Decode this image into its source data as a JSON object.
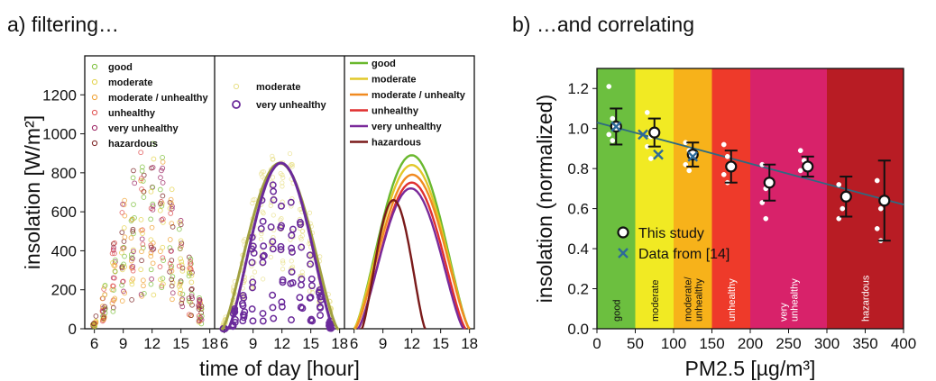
{
  "panels": {
    "a_title": "a) filtering…",
    "b_title": "b) …and correlating"
  },
  "chart_data": [
    {
      "type": "scatter",
      "panel": "a",
      "ylabel": "insolation [W/m²]",
      "xlabel": "time of day [hour]",
      "ylim": [
        0,
        1400
      ],
      "xlim": [
        5,
        18.5
      ],
      "yticks": [
        0,
        200,
        400,
        600,
        800,
        1000,
        1200
      ],
      "xticks": [
        6,
        9,
        12,
        15,
        18
      ],
      "subplots": [
        {
          "kind": "scatter",
          "legend": [
            "good",
            "moderate",
            "moderate / unhealthy",
            "unhealthy",
            "very unhealthy",
            "hazardous"
          ],
          "colors": [
            "#7cbf3a",
            "#e3d24a",
            "#f0a030",
            "#e05050",
            "#9a2060",
            "#7a2020"
          ]
        },
        {
          "kind": "scatter+fit",
          "legend": [
            "moderate",
            "very unhealthy"
          ],
          "colors": [
            "#e8e08a",
            "#6a2a9a"
          ],
          "fits": [
            {
              "series": "moderate",
              "peak": 850,
              "start": 5.8,
              "end": 17.8,
              "color": "#a0a040"
            },
            {
              "series": "very unhealthy",
              "peak": 850,
              "start": 6.4,
              "end": 17.4,
              "color": "#6a2a9a"
            }
          ]
        },
        {
          "kind": "line",
          "legend": [
            "good",
            "moderate",
            "moderate / unhealty",
            "unhealthy",
            "very unhealthy",
            "hazardous"
          ],
          "series": [
            {
              "name": "good",
              "color": "#6ab82e",
              "peak": 890,
              "start": 6.0,
              "end": 18.0
            },
            {
              "name": "moderate",
              "color": "#e2c82a",
              "peak": 840,
              "start": 6.0,
              "end": 18.0
            },
            {
              "name": "moderate / unhealty",
              "color": "#f08a20",
              "peak": 790,
              "start": 6.1,
              "end": 18.0
            },
            {
              "name": "unhealthy",
              "color": "#e03030",
              "peak": 750,
              "start": 6.4,
              "end": 17.6
            },
            {
              "name": "very unhealthy",
              "color": "#7a2a9a",
              "peak": 720,
              "start": 6.4,
              "end": 17.4
            },
            {
              "name": "hazardous",
              "color": "#7a1a1a",
              "peak": 660,
              "start": 6.8,
              "end": 13.4
            }
          ]
        }
      ]
    },
    {
      "type": "scatter",
      "panel": "b",
      "xlabel": "PM2.5 [µg/m³]",
      "ylabel": "insolation (normalized)",
      "xlim": [
        0,
        400
      ],
      "ylim": [
        0,
        1.3
      ],
      "xticks": [
        0,
        50,
        100,
        150,
        200,
        250,
        300,
        350,
        400
      ],
      "yticks": [
        0.0,
        0.2,
        0.4,
        0.6,
        0.8,
        1.0,
        1.2
      ],
      "bands": [
        {
          "label": "good",
          "from": 0,
          "to": 50,
          "color": "#6cbf3f",
          "text_color": "#111111"
        },
        {
          "label": "moderate",
          "from": 50,
          "to": 100,
          "color": "#f1ea23",
          "text_color": "#111111"
        },
        {
          "label": "moderate/ unhealthy",
          "from": 100,
          "to": 150,
          "color": "#f7b21a",
          "text_color": "#111111"
        },
        {
          "label": "unhealthy",
          "from": 150,
          "to": 200,
          "color": "#ee3a2a",
          "text_color": "#ffffff"
        },
        {
          "label": "very unhealthy",
          "from": 200,
          "to": 300,
          "color": "#d8226a",
          "text_color": "#ffffff"
        },
        {
          "label": "hazardous",
          "from": 300,
          "to": 400,
          "color": "#b81c24",
          "text_color": "#ffffff"
        }
      ],
      "series": [
        {
          "name": "This study",
          "x": [
            25,
            75,
            125,
            175,
            225,
            275,
            325,
            375
          ],
          "y": [
            1.01,
            0.98,
            0.87,
            0.81,
            0.73,
            0.81,
            0.66,
            0.64
          ],
          "err": [
            0.09,
            0.07,
            0.06,
            0.08,
            0.09,
            0.05,
            0.1,
            0.2
          ]
        },
        {
          "name": "Data from [14]",
          "x": [
            25,
            60,
            80,
            125
          ],
          "y": [
            1.01,
            0.97,
            0.87,
            0.86
          ]
        }
      ],
      "scatter_points": [
        {
          "x": 25,
          "y": [
            1.21,
            1.05,
            0.97,
            0.94
          ]
        },
        {
          "x": 75,
          "y": [
            1.08,
            0.96,
            0.91,
            0.85
          ]
        },
        {
          "x": 125,
          "y": [
            0.93,
            0.89,
            0.82,
            0.79
          ]
        },
        {
          "x": 175,
          "y": [
            0.92,
            0.86,
            0.77,
            0.73
          ]
        },
        {
          "x": 225,
          "y": [
            0.82,
            0.7,
            0.63,
            0.55
          ]
        },
        {
          "x": 275,
          "y": [
            0.89,
            0.84,
            0.79
          ]
        },
        {
          "x": 325,
          "y": [
            0.72,
            0.6,
            0.55
          ]
        },
        {
          "x": 375,
          "y": [
            0.74,
            0.6,
            0.5,
            0.44
          ]
        }
      ],
      "trend": {
        "x": [
          0,
          400
        ],
        "y": [
          1.03,
          0.62
        ]
      }
    }
  ]
}
